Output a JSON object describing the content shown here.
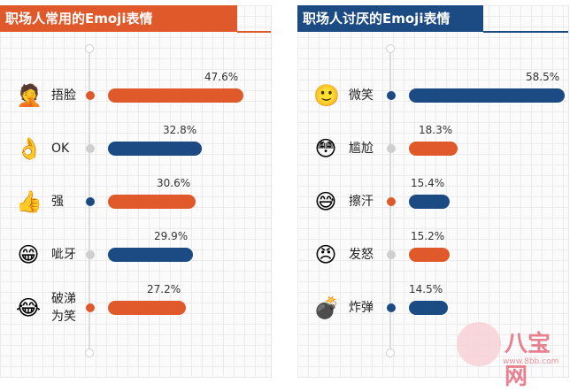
{
  "chart_data": [
    {
      "type": "bar",
      "title": "职场人常用的Emoji表情",
      "series": [
        {
          "values": [
            47.6,
            32.8,
            30.6,
            29.9,
            27.2
          ]
        }
      ],
      "categories": [
        "捂脸",
        "OK",
        "强",
        "呲牙",
        "破涕为笑"
      ],
      "value_labels": [
        "47.6%",
        "32.8%",
        "30.6%",
        "29.9%",
        "27.2%"
      ],
      "bar_colors": [
        "#e0592a",
        "#1c4a82",
        "#e0592a",
        "#1c4a82",
        "#e0592a"
      ],
      "dot_colors": [
        "#e0592a",
        "#cfcfcf",
        "#1c4a82",
        "#cfcfcf",
        "#e0592a"
      ],
      "icons": [
        "facepalm-emoji",
        "ok-hand-emoji",
        "thumbs-up-emoji",
        "grinning-teeth-emoji",
        "tears-of-joy-emoji"
      ],
      "icon_glyphs": [
        "🤦",
        "👌",
        "👍",
        "😁",
        "😂"
      ],
      "xlim": [
        0,
        60
      ],
      "grid": true
    },
    {
      "type": "bar",
      "title": "职场人讨厌的Emoji表情",
      "series": [
        {
          "values": [
            58.5,
            18.3,
            15.4,
            15.2,
            14.5
          ]
        }
      ],
      "categories": [
        "微笑",
        "尴尬",
        "擦汗",
        "发怒",
        "炸弹"
      ],
      "value_labels": [
        "58.5%",
        "18.3%",
        "15.4%",
        "15.2%",
        "14.5%"
      ],
      "bar_colors": [
        "#1c4a82",
        "#e0592a",
        "#1c4a82",
        "#e0592a",
        "#1c4a82"
      ],
      "dot_colors": [
        "#1c4a82",
        "#cfcfcf",
        "#e0592a",
        "#cfcfcf",
        "#1c4a82"
      ],
      "icons": [
        "smile-emoji",
        "awkward-emoji",
        "sweat-wipe-emoji",
        "angry-emoji",
        "bomb-emoji"
      ],
      "icon_glyphs": [
        "🙂",
        "😳",
        "😅",
        "😠",
        "💣"
      ],
      "xlim": [
        0,
        60
      ],
      "grid": true
    }
  ],
  "watermark": {
    "text": "八宝网",
    "url": "www.8bb.com"
  }
}
